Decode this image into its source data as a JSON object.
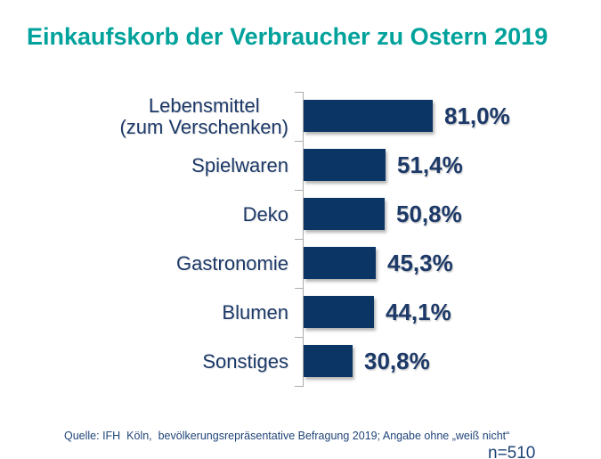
{
  "page": {
    "title": "Einkaufskorb der Verbraucher zu Ostern 2019"
  },
  "colors": {
    "title": "#00a29b",
    "bar": "#0a3565",
    "label_text": "#1c3968",
    "axis": "#ababab",
    "note_text": "#1f4478"
  },
  "chart_data": {
    "type": "bar",
    "orientation": "horizontal",
    "title": "Einkaufskorb der Verbraucher zu Ostern 2019",
    "categories": [
      "Lebensmittel\n(zum Verschenken)",
      "Spielwaren",
      "Deko",
      "Gastronomie",
      "Blumen",
      "Sonstiges"
    ],
    "values": [
      81.0,
      51.4,
      50.8,
      45.3,
      44.1,
      30.8
    ],
    "value_labels": [
      "81,0%",
      "51,4%",
      "50,8%",
      "45,3%",
      "44,1%",
      "30,8%"
    ],
    "unit": "%",
    "xlim": [
      0,
      100
    ],
    "grid": false,
    "legend": false,
    "bar_color": "#0a3565",
    "sample_size_note": "n=510",
    "source_note": "Quelle: IFH  Köln,  bevölkerungsrepräsentative Befragung 2019; Angabe ohne „weiß nicht“"
  }
}
